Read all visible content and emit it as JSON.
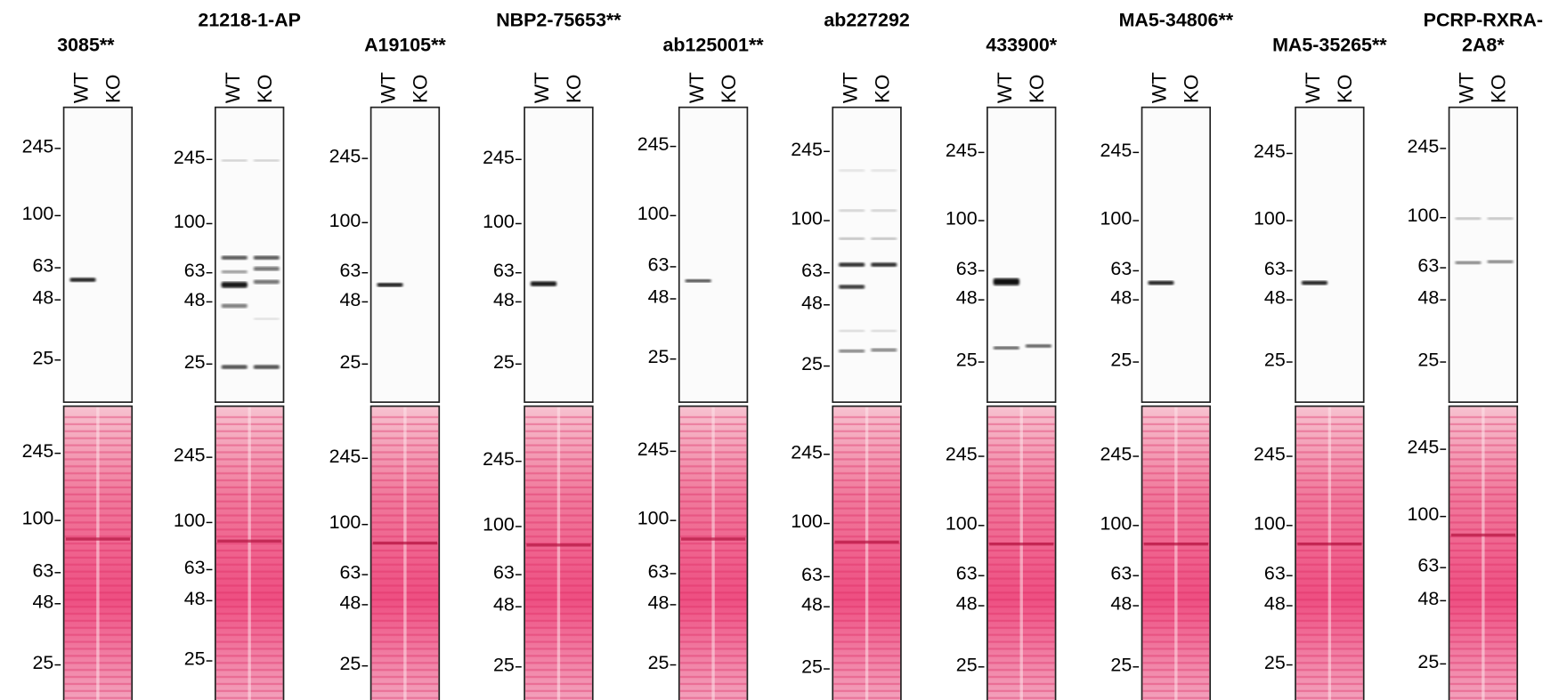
{
  "panels": [
    {
      "title": [
        "3085**"
      ],
      "lanes": [
        "WT",
        "KO"
      ],
      "top_markers": [
        245,
        100,
        63,
        48,
        25
      ],
      "bottom_markers": [
        245,
        100,
        63,
        48,
        25
      ]
    },
    {
      "title": [
        "21218-1-AP"
      ],
      "lanes": [
        "WT",
        "KO"
      ],
      "top_markers": [
        245,
        100,
        63,
        48,
        25
      ],
      "bottom_markers": [
        245,
        100,
        63,
        48,
        25
      ]
    },
    {
      "title": [
        "A19105**"
      ],
      "lanes": [
        "WT",
        "KO"
      ],
      "top_markers": [
        245,
        100,
        63,
        48,
        25
      ],
      "bottom_markers": [
        245,
        100,
        63,
        48,
        25
      ]
    },
    {
      "title": [
        "NBP2-75653**"
      ],
      "lanes": [
        "WT",
        "KO"
      ],
      "top_markers": [
        245,
        100,
        63,
        48,
        25
      ],
      "bottom_markers": [
        245,
        100,
        63,
        48,
        25
      ]
    },
    {
      "title": [
        "ab125001**"
      ],
      "lanes": [
        "WT",
        "KO"
      ],
      "top_markers": [
        245,
        100,
        63,
        48,
        25
      ],
      "bottom_markers": [
        245,
        100,
        63,
        48,
        25
      ]
    },
    {
      "title": [
        "ab227292"
      ],
      "lanes": [
        "WT",
        "KO"
      ],
      "top_markers": [
        245,
        100,
        63,
        48,
        25
      ],
      "bottom_markers": [
        245,
        100,
        63,
        48,
        25
      ]
    },
    {
      "title": [
        "433900*"
      ],
      "lanes": [
        "WT",
        "KO"
      ],
      "top_markers": [
        245,
        100,
        63,
        48,
        25
      ],
      "bottom_markers": [
        245,
        100,
        63,
        48,
        25
      ]
    },
    {
      "title": [
        "MA5-34806**"
      ],
      "lanes": [
        "WT",
        "KO"
      ],
      "top_markers": [
        245,
        100,
        63,
        48,
        25
      ],
      "bottom_markers": [
        245,
        100,
        63,
        48,
        25
      ]
    },
    {
      "title": [
        "MA5-35265**"
      ],
      "lanes": [
        "WT",
        "KO"
      ],
      "top_markers": [
        245,
        100,
        63,
        48,
        25
      ],
      "bottom_markers": [
        245,
        100,
        63,
        48,
        25
      ]
    },
    {
      "title": [
        "PCRP-RXRA-",
        "2A8*"
      ],
      "lanes": [
        "WT",
        "KO"
      ],
      "top_markers": [
        245,
        100,
        63,
        48,
        25
      ],
      "bottom_markers": [
        245,
        100,
        63,
        48,
        25
      ]
    }
  ]
}
